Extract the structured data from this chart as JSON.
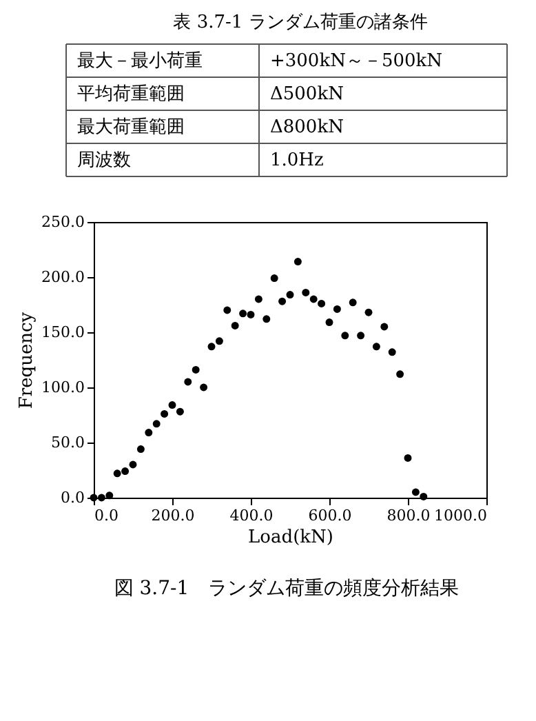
{
  "chart_data": {
    "type": "scatter",
    "title": "図 3.7-1　ランダム荷重の頻度分析結果",
    "annotations": [
      "表 3.7-1 ランダム荷重の諸条件",
      "最大－最小荷重",
      "+300kN～－500kN",
      "平均荷重範囲",
      "Δ500kN",
      "最大荷重範囲",
      "Δ800kN",
      "周波数",
      "1.0Hz"
    ],
    "xlabel": "Load(kN)",
    "ylabel": "Frequency",
    "x": [
      0,
      20,
      40,
      60,
      80,
      100,
      120,
      140,
      160,
      180,
      200,
      220,
      240,
      260,
      280,
      300,
      320,
      340,
      360,
      380,
      400,
      420,
      440,
      460,
      480,
      500,
      520,
      540,
      560,
      580,
      600,
      620,
      640,
      660,
      680,
      700,
      720,
      740,
      760,
      780,
      800,
      820,
      840
    ],
    "series": [
      {
        "color": "#000000",
        "values": [
          0,
          0,
          2,
          22,
          24,
          30,
          44,
          59,
          67,
          76,
          84,
          78,
          105,
          116,
          100,
          137,
          142,
          170,
          156,
          167,
          166,
          180,
          162,
          199,
          178,
          184,
          214,
          186,
          180,
          176,
          159,
          171,
          147,
          177,
          147,
          168,
          137,
          155,
          132,
          112,
          36,
          5,
          1
        ]
      }
    ],
    "marker": "circle",
    "xlim": [
      0,
      1000
    ],
    "ylim": [
      0,
      250
    ],
    "xticks": [
      {
        "value": 0,
        "label": "0.0"
      },
      {
        "value": 200,
        "label": "200.0"
      },
      {
        "value": 400,
        "label": "400.0"
      },
      {
        "value": 600,
        "label": "600.0"
      },
      {
        "value": 800,
        "label": "800.0"
      },
      {
        "value": 1000,
        "label": "1000.0"
      }
    ],
    "yticks": [
      {
        "value": 0,
        "label": "0.0"
      },
      {
        "value": 50,
        "label": "50.0"
      },
      {
        "value": 100,
        "label": "100.0"
      },
      {
        "value": 150,
        "label": "150.0"
      },
      {
        "value": 200,
        "label": "200.0"
      },
      {
        "value": 250,
        "label": "250.0"
      }
    ],
    "grid": false
  }
}
